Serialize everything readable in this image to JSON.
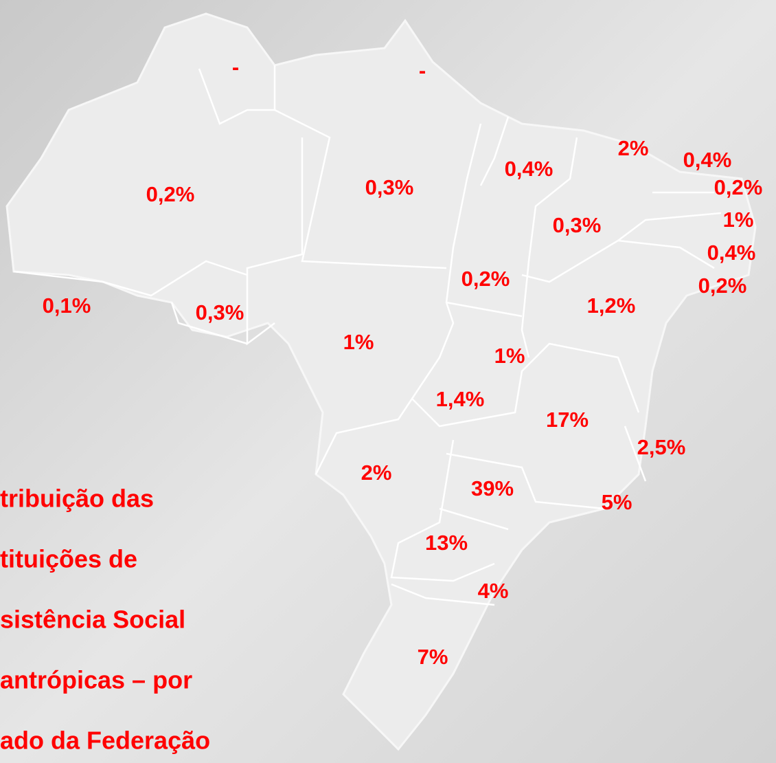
{
  "map": {
    "labels": [
      "-",
      "-",
      "0,2%",
      "0,3%",
      "0,4%",
      "2%",
      "0,4%",
      "0,2%",
      "1%",
      "0,3%",
      "0,4%",
      "0,2%",
      "0,2%",
      "0,1%",
      "0,3%",
      "1,2%",
      "1%",
      "1%",
      "1,4%",
      "17%",
      "2,5%",
      "2%",
      "39%",
      "5%",
      "13%",
      "4%",
      "7%"
    ],
    "title_lines": [
      "tribuição das",
      "tituições de",
      "sistência Social",
      "antrópicas – por",
      "ado da Federação"
    ]
  }
}
